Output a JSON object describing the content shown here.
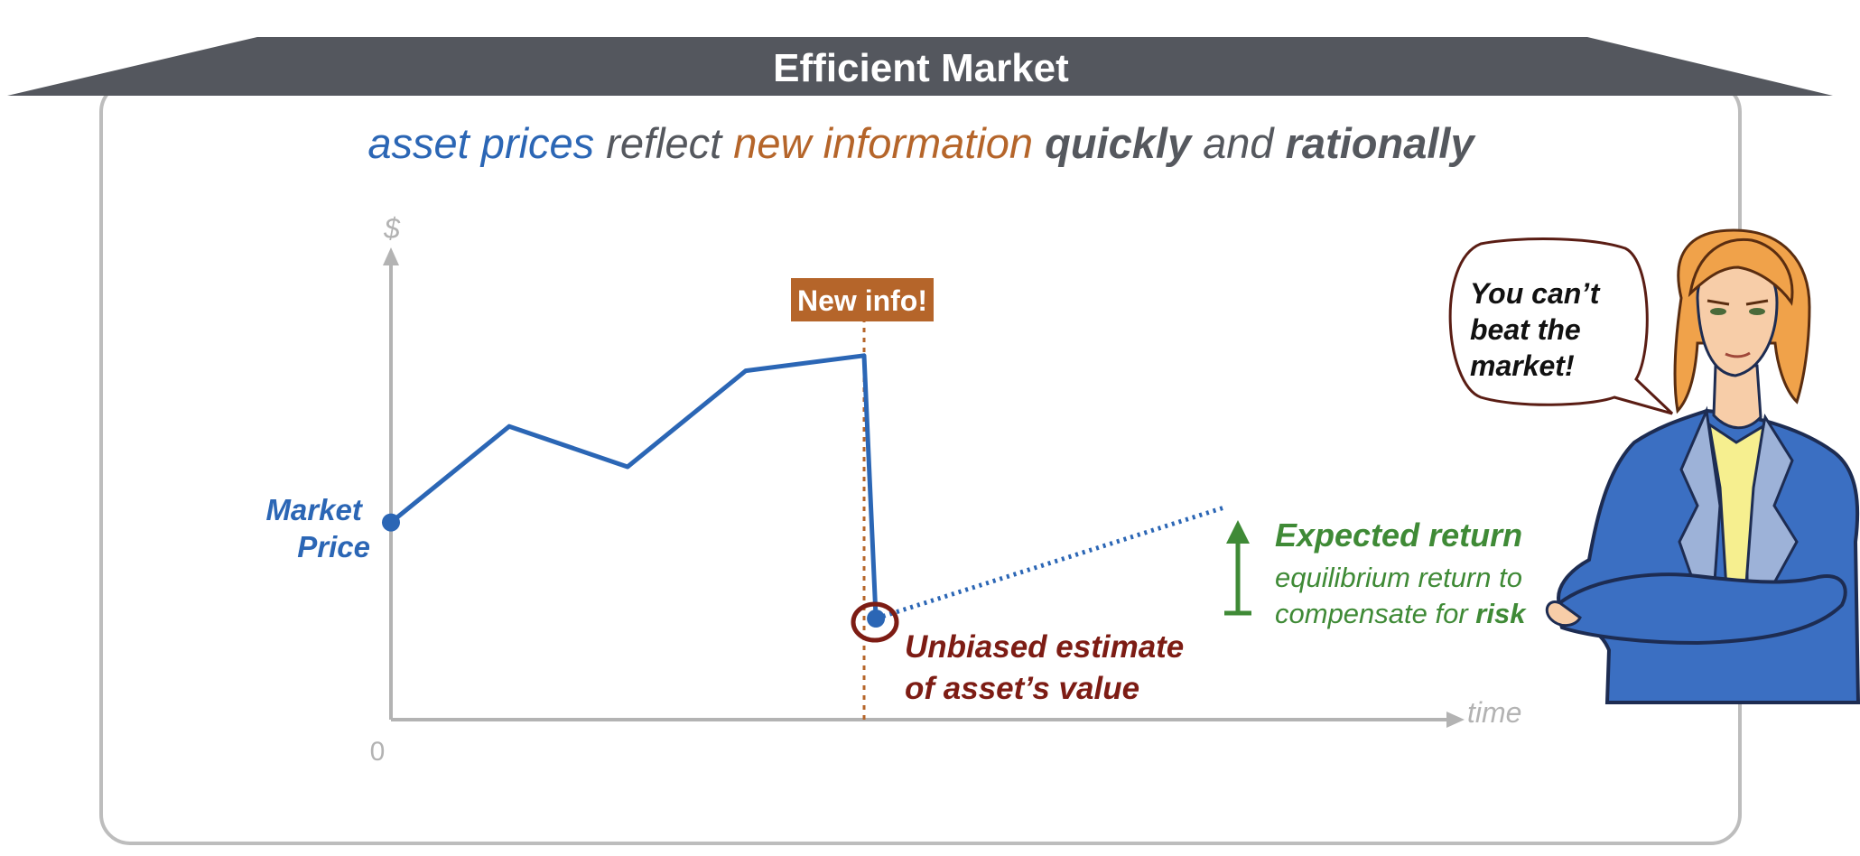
{
  "banner": {
    "title": "Efficient Market"
  },
  "headline": {
    "part1": "asset prices",
    "part2": " reflect ",
    "part3": "new information",
    "part4": " quickly",
    "part5": " and ",
    "part6": "rationally"
  },
  "axes": {
    "y_label": "$",
    "x_label": "time",
    "origin_label": "0"
  },
  "labels": {
    "market_price_line1": "Market",
    "market_price_line2": "Price",
    "new_info": "New info!",
    "unbiased_line1": "Unbiased estimate",
    "unbiased_line2": "of asset’s value",
    "expected_return": "Expected return",
    "equilibrium_line1": "equilibrium return to",
    "equilibrium_line2_a": "compensate for ",
    "equilibrium_line2_b": "risk"
  },
  "speech": {
    "line1": "You can’t",
    "line2": "beat the",
    "line3": "market!"
  },
  "colors": {
    "banner": "#54575e",
    "frame": "#bdbdbd",
    "price_blue": "#2b66b5",
    "info_orange": "#b5652a",
    "estimate_red": "#7d1c14",
    "return_green": "#3f8a36",
    "gray_text": "#55585e",
    "axis": "#b3b3b3"
  },
  "chart_data": {
    "type": "line",
    "x_axis": "time",
    "y_axis": "$",
    "price_path": [
      {
        "t": 0,
        "price": 0.39
      },
      {
        "t": 1,
        "price": 0.58
      },
      {
        "t": 2,
        "price": 0.5
      },
      {
        "t": 3,
        "price": 0.69
      },
      {
        "t": 4,
        "price": 0.72
      },
      {
        "t": 4.1,
        "price": 0.2
      }
    ],
    "new_info_time": 4,
    "expected_path": [
      {
        "t": 4.1,
        "price": 0.2
      },
      {
        "t": 7.05,
        "price": 0.42
      }
    ]
  }
}
